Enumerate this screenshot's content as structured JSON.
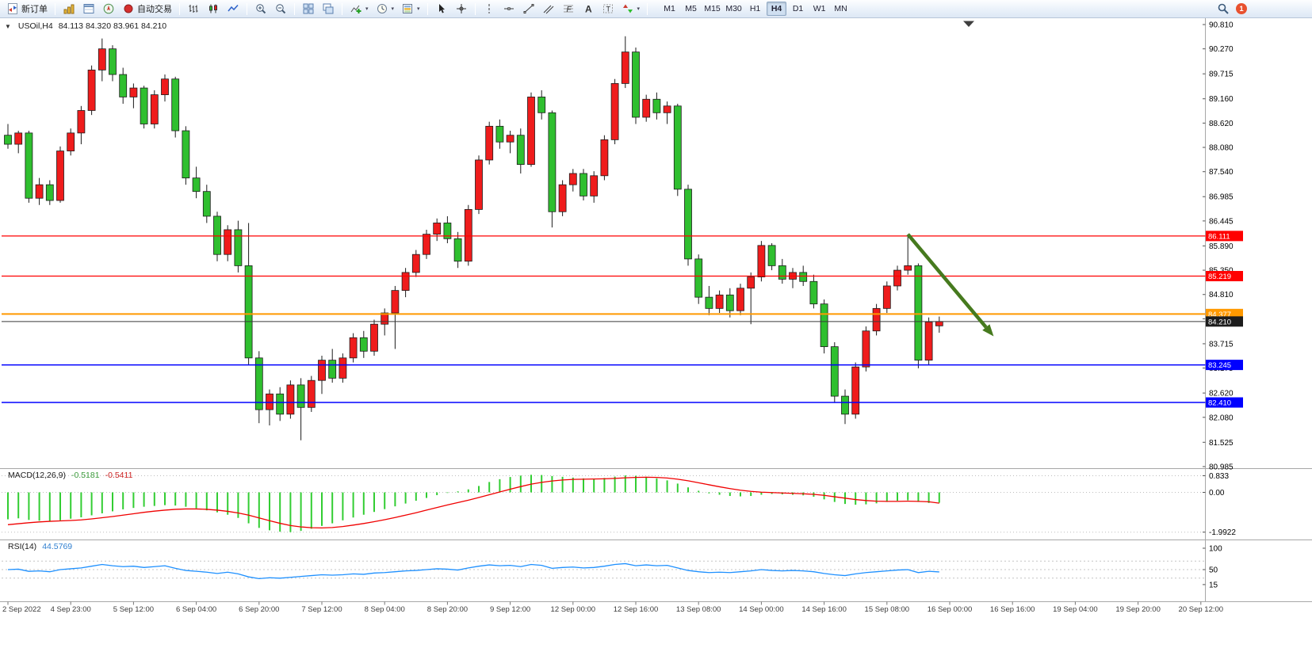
{
  "icons": {
    "collapse_glyph": "▼",
    "dropdown_caret": "▾"
  },
  "toolbar": {
    "new_order_label": "新订单",
    "autotrading_label": "自动交易",
    "timeframes": [
      "M1",
      "M5",
      "M15",
      "M30",
      "H1",
      "H4",
      "D1",
      "W1",
      "MN"
    ],
    "active_timeframe": "H4",
    "notification_count": "1"
  },
  "chart": {
    "symbol_period": "USOil,H4",
    "ohlc_text": "84.113 84.320 83.961 84.210"
  },
  "colors": {
    "up": "#ef1c1c",
    "down": "#2fbf2f",
    "outline": "#1c1c1c",
    "macd": "#32cd32",
    "signal": "#f00000",
    "rsi": "#1e90ff",
    "arrow": "#467a1e",
    "bid": "#3a3a3a"
  },
  "chart_data": {
    "type": "candlestick",
    "symbol": "USOil",
    "period": "H4",
    "color_convention": "red-up-green-down",
    "y_range": [
      80.985,
      90.81
    ],
    "y_axis_ticks": [
      90.81,
      90.27,
      89.715,
      89.16,
      88.62,
      88.08,
      87.54,
      86.985,
      86.445,
      85.89,
      85.35,
      84.81,
      84.27,
      83.715,
      83.175,
      82.62,
      82.08,
      81.525,
      80.985
    ],
    "hlines": [
      {
        "price": 86.111,
        "label": "86.111",
        "color": "#ff0000",
        "width": 1.2
      },
      {
        "price": 85.219,
        "label": "85.219",
        "color": "#ff0000",
        "width": 1.2
      },
      {
        "price": 84.377,
        "label": "84.377",
        "color": "#ff9900",
        "width": 2
      },
      {
        "price": 83.245,
        "label": "83.245",
        "color": "#0000ff",
        "width": 1.5
      },
      {
        "price": 82.41,
        "label": "82.410",
        "color": "#0000ff",
        "width": 1.5
      }
    ],
    "current_price": 84.21,
    "current_price_label": "84.210",
    "ohlc": [
      [
        88.35,
        88.6,
        88.05,
        88.15
      ],
      [
        88.15,
        88.45,
        87.95,
        88.4
      ],
      [
        88.4,
        88.45,
        86.85,
        86.95
      ],
      [
        86.95,
        87.4,
        86.8,
        87.25
      ],
      [
        87.25,
        87.35,
        86.8,
        86.9
      ],
      [
        86.9,
        88.1,
        86.85,
        88.0
      ],
      [
        88.0,
        88.5,
        87.9,
        88.4
      ],
      [
        88.4,
        89.0,
        88.15,
        88.9
      ],
      [
        88.9,
        89.9,
        88.8,
        89.8
      ],
      [
        89.8,
        90.5,
        89.55,
        90.27
      ],
      [
        90.27,
        90.35,
        89.55,
        89.7
      ],
      [
        89.7,
        89.85,
        89.05,
        89.2
      ],
      [
        89.2,
        89.5,
        88.95,
        89.4
      ],
      [
        89.4,
        89.45,
        88.5,
        88.6
      ],
      [
        88.6,
        89.35,
        88.5,
        89.25
      ],
      [
        89.25,
        89.7,
        89.1,
        89.6
      ],
      [
        89.6,
        89.65,
        88.3,
        88.45
      ],
      [
        88.45,
        88.55,
        87.25,
        87.4
      ],
      [
        87.4,
        87.65,
        86.95,
        87.1
      ],
      [
        87.1,
        87.25,
        86.4,
        86.55
      ],
      [
        86.55,
        86.65,
        85.55,
        85.7
      ],
      [
        85.7,
        86.35,
        85.55,
        86.25
      ],
      [
        86.25,
        86.45,
        85.3,
        85.45
      ],
      [
        85.45,
        86.4,
        83.25,
        83.4
      ],
      [
        83.4,
        83.55,
        81.95,
        82.25
      ],
      [
        82.25,
        82.7,
        81.9,
        82.6
      ],
      [
        82.6,
        82.75,
        82.0,
        82.15
      ],
      [
        82.15,
        82.9,
        82.05,
        82.8
      ],
      [
        82.8,
        82.95,
        81.57,
        82.3
      ],
      [
        82.3,
        83.0,
        82.2,
        82.9
      ],
      [
        82.9,
        83.45,
        82.6,
        83.35
      ],
      [
        83.35,
        83.6,
        82.85,
        82.95
      ],
      [
        82.95,
        83.5,
        82.85,
        83.4
      ],
      [
        83.4,
        83.95,
        83.3,
        83.85
      ],
      [
        83.85,
        84.0,
        83.4,
        83.55
      ],
      [
        83.55,
        84.25,
        83.45,
        84.15
      ],
      [
        84.15,
        84.5,
        83.9,
        84.4
      ],
      [
        84.4,
        85.0,
        83.6,
        84.9
      ],
      [
        84.9,
        85.4,
        84.75,
        85.3
      ],
      [
        85.3,
        85.8,
        85.2,
        85.7
      ],
      [
        85.7,
        86.25,
        85.6,
        86.15
      ],
      [
        86.15,
        86.5,
        86.0,
        86.4
      ],
      [
        86.4,
        86.55,
        85.95,
        86.05
      ],
      [
        86.05,
        86.2,
        85.4,
        85.55
      ],
      [
        85.55,
        86.8,
        85.45,
        86.7
      ],
      [
        86.7,
        87.9,
        86.6,
        87.8
      ],
      [
        87.8,
        88.65,
        87.7,
        88.55
      ],
      [
        88.55,
        88.7,
        88.05,
        88.2
      ],
      [
        88.2,
        88.45,
        87.95,
        88.35
      ],
      [
        88.35,
        88.5,
        87.5,
        87.7
      ],
      [
        87.7,
        89.3,
        87.65,
        89.2
      ],
      [
        89.2,
        89.35,
        88.7,
        88.85
      ],
      [
        88.85,
        88.9,
        86.3,
        86.65
      ],
      [
        86.65,
        87.35,
        86.55,
        87.25
      ],
      [
        87.25,
        87.6,
        87.1,
        87.5
      ],
      [
        87.5,
        87.6,
        86.9,
        87.0
      ],
      [
        87.0,
        87.55,
        86.85,
        87.45
      ],
      [
        87.45,
        88.35,
        87.35,
        88.25
      ],
      [
        88.25,
        89.6,
        88.15,
        89.5
      ],
      [
        89.5,
        90.55,
        89.4,
        90.2
      ],
      [
        90.2,
        90.3,
        88.6,
        88.75
      ],
      [
        88.75,
        89.25,
        88.65,
        89.15
      ],
      [
        89.15,
        89.3,
        88.7,
        88.85
      ],
      [
        88.85,
        89.1,
        88.6,
        89.0
      ],
      [
        89.0,
        89.05,
        87.0,
        87.15
      ],
      [
        87.15,
        87.25,
        85.45,
        85.6
      ],
      [
        85.6,
        85.7,
        84.6,
        84.75
      ],
      [
        84.75,
        85.0,
        84.35,
        84.5
      ],
      [
        84.5,
        84.9,
        84.4,
        84.8
      ],
      [
        84.8,
        84.95,
        84.3,
        84.45
      ],
      [
        84.45,
        85.05,
        84.35,
        84.95
      ],
      [
        84.95,
        85.3,
        84.15,
        85.2
      ],
      [
        85.2,
        86.0,
        85.1,
        85.9
      ],
      [
        85.9,
        85.95,
        85.35,
        85.45
      ],
      [
        85.45,
        85.6,
        85.05,
        85.15
      ],
      [
        85.15,
        85.4,
        84.95,
        85.3
      ],
      [
        85.3,
        85.45,
        85.0,
        85.1
      ],
      [
        85.1,
        85.25,
        84.5,
        84.6
      ],
      [
        84.6,
        84.7,
        83.5,
        83.65
      ],
      [
        83.65,
        83.75,
        82.4,
        82.55
      ],
      [
        82.55,
        82.7,
        81.93,
        82.15
      ],
      [
        82.15,
        83.3,
        82.05,
        83.2
      ],
      [
        83.2,
        84.1,
        83.1,
        84.0
      ],
      [
        84.0,
        84.6,
        83.9,
        84.5
      ],
      [
        84.5,
        85.1,
        84.4,
        85.0
      ],
      [
        85.0,
        85.45,
        84.9,
        85.35
      ],
      [
        85.35,
        86.1,
        85.25,
        85.45
      ],
      [
        85.45,
        85.5,
        83.17,
        83.35
      ],
      [
        83.35,
        84.3,
        83.25,
        84.2
      ],
      [
        84.113,
        84.32,
        83.961,
        84.21
      ]
    ],
    "time_labels": [
      "2 Sep 2022",
      "4 Sep 23:00",
      "5 Sep 12:00",
      "6 Sep 04:00",
      "6 Sep 20:00",
      "7 Sep 12:00",
      "8 Sep 04:00",
      "8 Sep 20:00",
      "9 Sep 12:00",
      "12 Sep 00:00",
      "12 Sep 16:00",
      "13 Sep 08:00",
      "14 Sep 00:00",
      "14 Sep 16:00",
      "15 Sep 08:00",
      "16 Sep 00:00",
      "16 Sep 16:00",
      "19 Sep 04:00",
      "19 Sep 20:00",
      "20 Sep 12:00"
    ],
    "annotations": {
      "trend_arrow": {
        "from_bar": 86,
        "from_price": 86.15,
        "to_bar": 94.2,
        "to_price": 83.88
      }
    },
    "indicators": {
      "macd": {
        "label": "MACD(12,26,9)",
        "value_main": "-0.5181",
        "value_signal": "-0.5411",
        "axis": [
          {
            "label": "0.833",
            "value": 0.833
          },
          {
            "label": "0.00",
            "value": 0
          },
          {
            "label": "-1.9922",
            "value": -1.9922
          }
        ],
        "histogram": [
          -1.35,
          -1.3,
          -1.38,
          -1.42,
          -1.45,
          -1.4,
          -1.32,
          -1.25,
          -1.15,
          -1.05,
          -0.95,
          -0.85,
          -0.78,
          -0.72,
          -0.68,
          -0.64,
          -0.66,
          -0.72,
          -0.8,
          -0.9,
          -1.0,
          -1.12,
          -1.28,
          -1.55,
          -1.78,
          -1.9,
          -1.97,
          -1.99,
          -1.93,
          -1.82,
          -1.68,
          -1.55,
          -1.4,
          -1.26,
          -1.12,
          -0.98,
          -0.84,
          -0.7,
          -0.56,
          -0.42,
          -0.28,
          -0.14,
          -0.03,
          0.05,
          0.15,
          0.32,
          0.52,
          0.66,
          0.77,
          0.84,
          0.88,
          0.87,
          0.82,
          0.78,
          0.74,
          0.7,
          0.68,
          0.72,
          0.79,
          0.85,
          0.83,
          0.78,
          0.7,
          0.6,
          0.44,
          0.25,
          0.08,
          -0.05,
          -0.12,
          -0.18,
          -0.2,
          -0.18,
          -0.12,
          -0.08,
          -0.1,
          -0.12,
          -0.15,
          -0.22,
          -0.35,
          -0.48,
          -0.58,
          -0.62,
          -0.6,
          -0.55,
          -0.48,
          -0.42,
          -0.4,
          -0.48,
          -0.53,
          -0.5181
        ],
        "signal": [
          -1.62,
          -1.57,
          -1.52,
          -1.48,
          -1.45,
          -1.43,
          -1.41,
          -1.38,
          -1.33,
          -1.27,
          -1.21,
          -1.14,
          -1.07,
          -1.0,
          -0.94,
          -0.89,
          -0.85,
          -0.83,
          -0.83,
          -0.85,
          -0.89,
          -0.95,
          -1.03,
          -1.14,
          -1.28,
          -1.42,
          -1.55,
          -1.66,
          -1.73,
          -1.77,
          -1.78,
          -1.76,
          -1.71,
          -1.64,
          -1.56,
          -1.47,
          -1.37,
          -1.26,
          -1.14,
          -1.02,
          -0.89,
          -0.76,
          -0.63,
          -0.51,
          -0.39,
          -0.26,
          -0.12,
          0.02,
          0.16,
          0.29,
          0.41,
          0.5,
          0.57,
          0.62,
          0.65,
          0.66,
          0.67,
          0.68,
          0.7,
          0.73,
          0.75,
          0.76,
          0.75,
          0.72,
          0.66,
          0.58,
          0.48,
          0.38,
          0.28,
          0.19,
          0.11,
          0.05,
          0.01,
          -0.01,
          -0.03,
          -0.05,
          -0.07,
          -0.1,
          -0.15,
          -0.22,
          -0.29,
          -0.36,
          -0.41,
          -0.44,
          -0.45,
          -0.45,
          -0.44,
          -0.45,
          -0.47,
          -0.5411
        ]
      },
      "rsi": {
        "label": "RSI(14)",
        "value_text": "44.5769",
        "axis": [
          {
            "label": "100",
            "value": 100
          },
          {
            "label": "50",
            "value": 50
          },
          {
            "label": "15",
            "value": 15
          }
        ],
        "levels": [
          70,
          50,
          30
        ],
        "values": [
          50,
          51,
          46,
          47,
          45,
          50,
          52,
          54,
          58,
          62,
          59,
          57,
          58,
          55,
          57,
          59,
          53,
          48,
          46,
          44,
          41,
          44,
          40,
          33,
          29,
          31,
          30,
          32,
          34,
          36,
          38,
          37,
          38,
          40,
          39,
          42,
          43,
          45,
          47,
          48,
          50,
          52,
          51,
          49,
          54,
          58,
          61,
          59,
          60,
          57,
          62,
          60,
          53,
          55,
          56,
          54,
          55,
          58,
          62,
          64,
          59,
          61,
          59,
          60,
          54,
          48,
          45,
          43,
          44,
          43,
          45,
          47,
          50,
          48,
          47,
          48,
          47,
          45,
          41,
          38,
          36,
          40,
          43,
          45,
          47,
          49,
          50,
          43,
          46,
          44.5769
        ]
      }
    }
  }
}
